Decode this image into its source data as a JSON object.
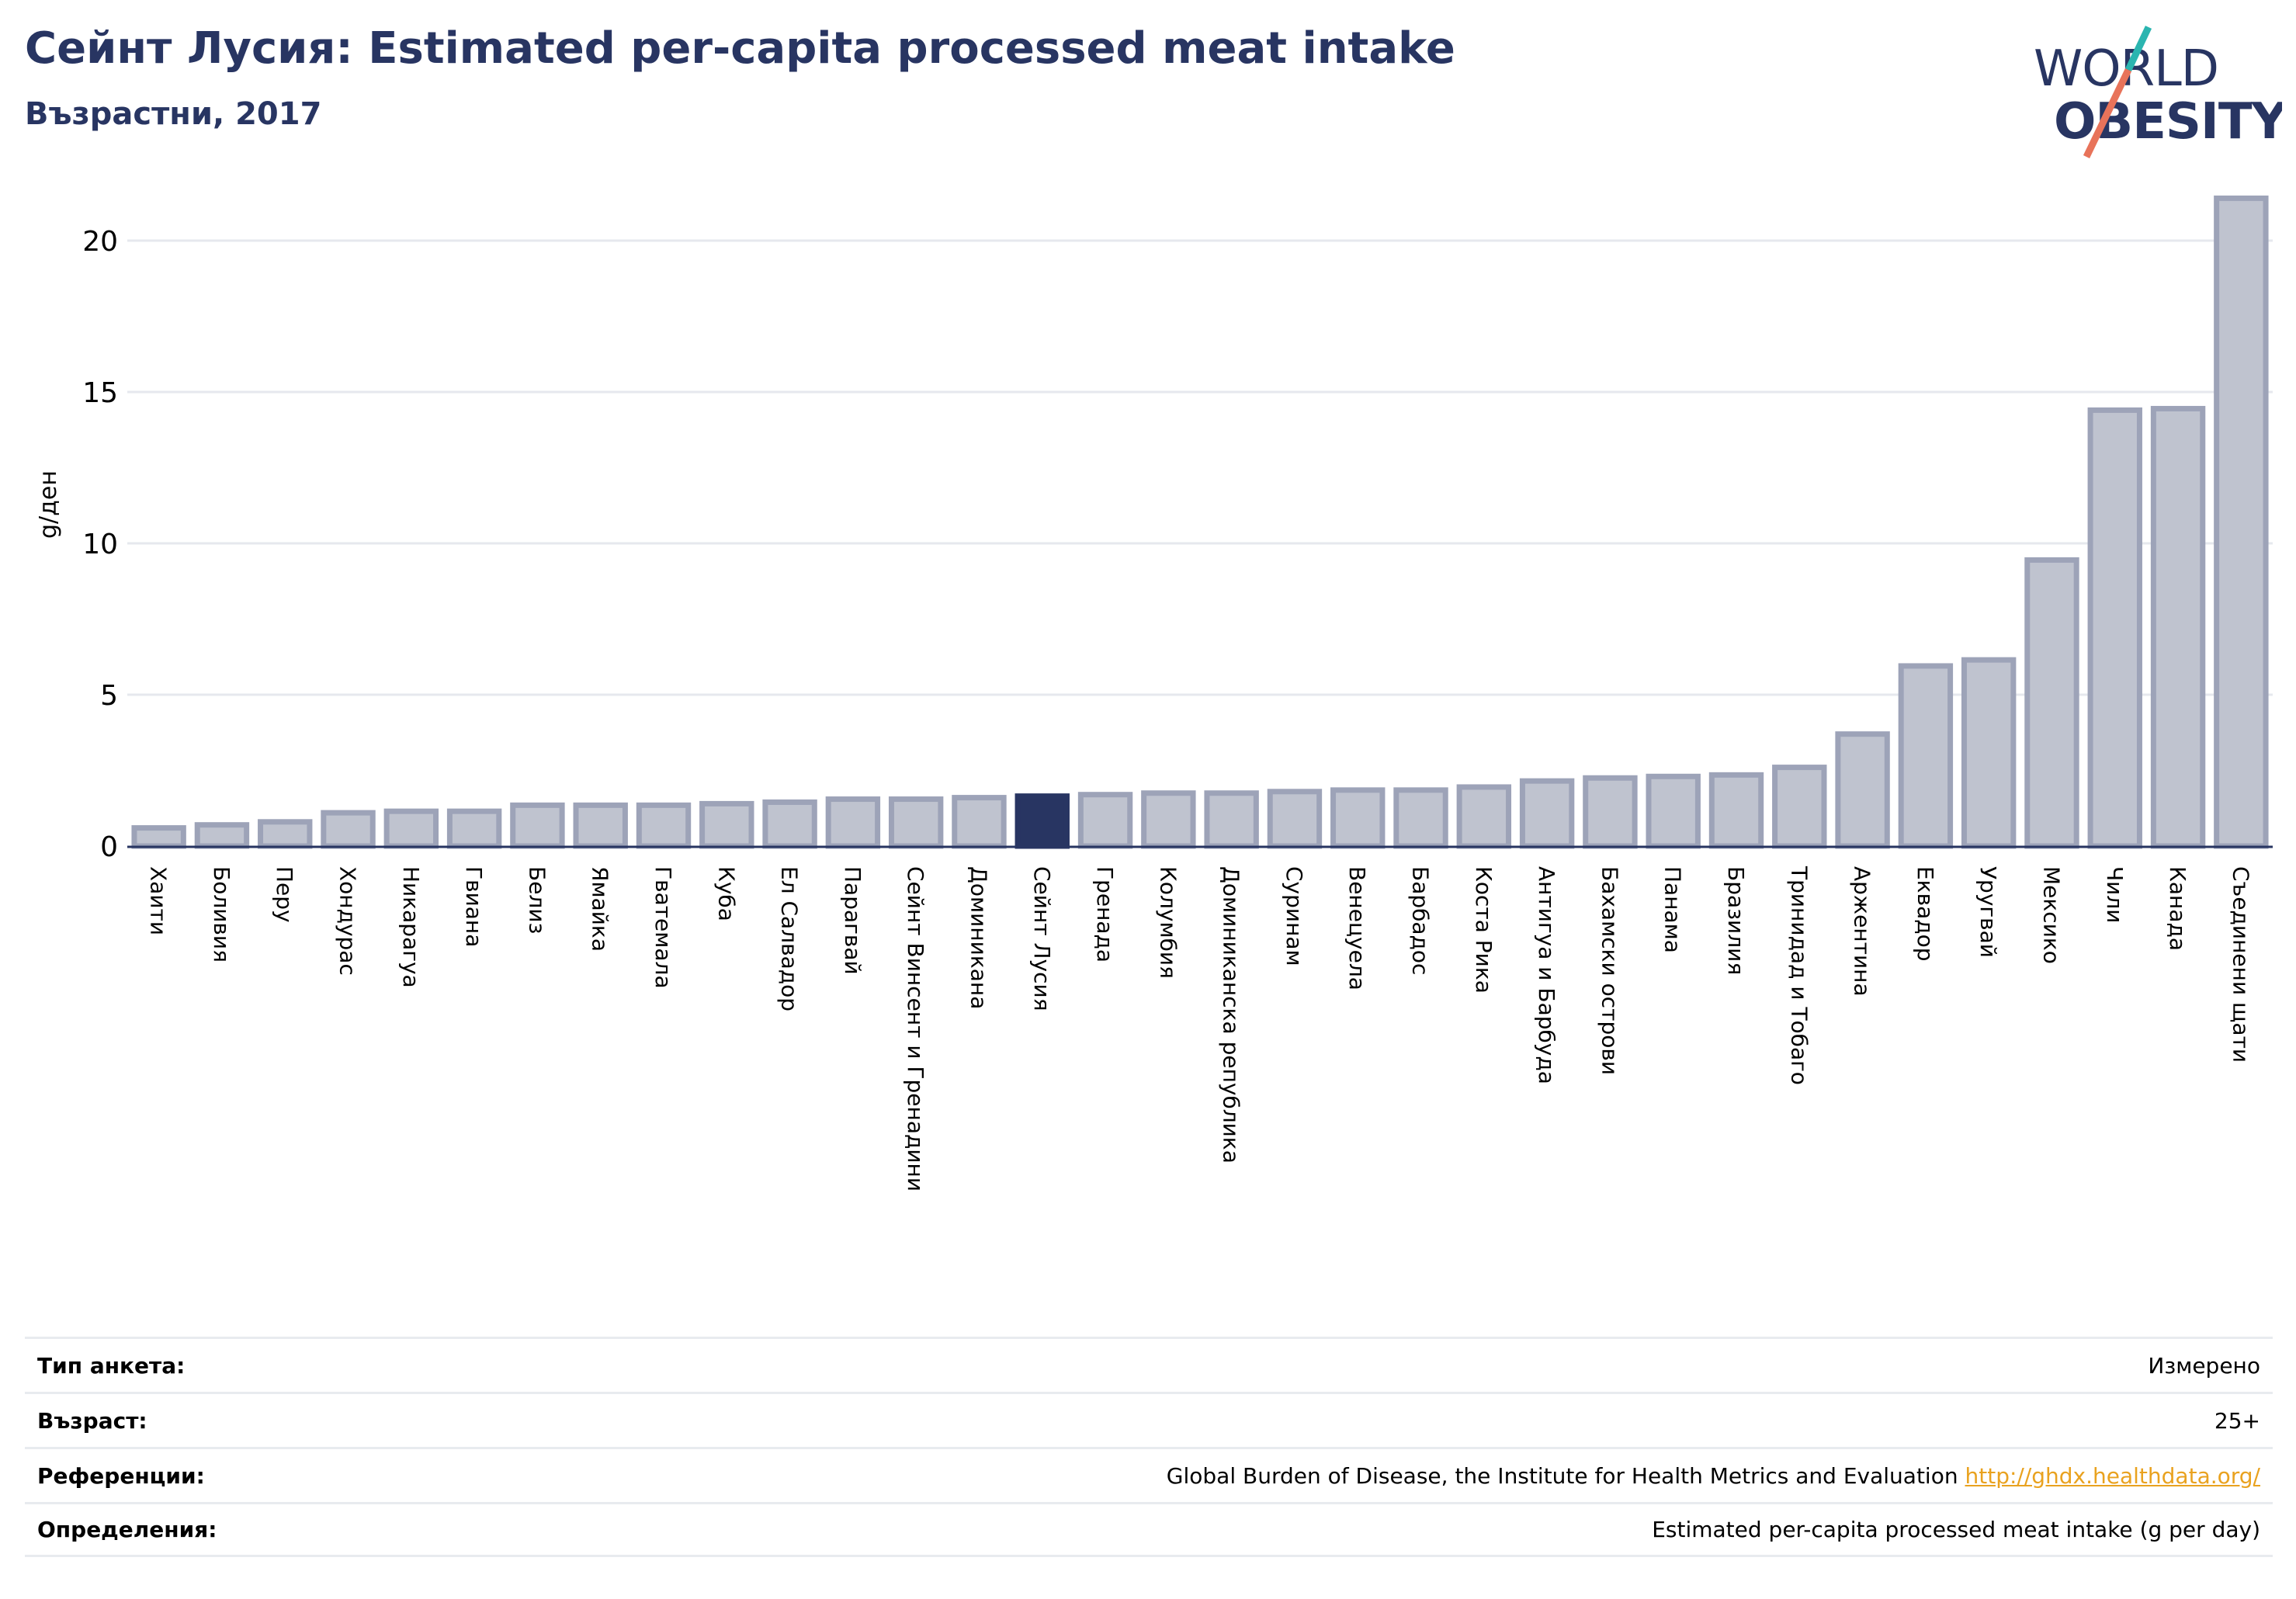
{
  "header": {
    "title": "Сейнт Лусия: Estimated per-capita processed meat intake",
    "subtitle": "Възрастни, 2017"
  },
  "logo": {
    "line1": "WORLD",
    "line2": "OBESITY",
    "slash_top_color": "#2bb5b0",
    "slash_bottom_color": "#e8735a",
    "text_color": "#283562"
  },
  "colors": {
    "bar_default": "#bfc3cf",
    "bar_default_stroke": "#9da3b8",
    "bar_highlight": "#283562",
    "grid": "#e6e8ee",
    "axis": "#283562"
  },
  "chart_data": {
    "type": "bar",
    "ylabel": "g/ден",
    "ylim": [
      0,
      22
    ],
    "yticks": [
      0,
      5,
      10,
      15,
      20
    ],
    "grid": true,
    "highlight": "Сейнт Лусия",
    "categories": [
      "Хаити",
      "Боливия",
      "Перу",
      "Хондурас",
      "Никарагуа",
      "Гвиана",
      "Белиз",
      "Ямайка",
      "Гватемала",
      "Куба",
      "Ел Салвадор",
      "Парагвай",
      "Сейнт Винсент и Гренадини",
      "Доминикана",
      "Сейнт Лусия",
      "Гренада",
      "Колумбия",
      "Доминиканска република",
      "Суринам",
      "Венецуела",
      "Барбадос",
      "Коста Рика",
      "Антигуа и Барбуда",
      "Бахамски острови",
      "Панама",
      "Бразилия",
      "Тринидад и Тобаго",
      "Аржентина",
      "Еквадор",
      "Уругвай",
      "Мексико",
      "Чили",
      "Канада",
      "Съединени щати"
    ],
    "values": [
      0.6,
      0.7,
      0.8,
      1.1,
      1.15,
      1.15,
      1.35,
      1.35,
      1.35,
      1.4,
      1.45,
      1.55,
      1.55,
      1.6,
      1.65,
      1.7,
      1.75,
      1.75,
      1.8,
      1.85,
      1.85,
      1.95,
      2.15,
      2.25,
      2.3,
      2.35,
      2.6,
      3.7,
      5.95,
      6.15,
      9.45,
      14.4,
      14.45,
      21.4
    ]
  },
  "info": [
    {
      "label": "Тип анкета:",
      "value": "Измерено"
    },
    {
      "label": "Възраст:",
      "value": "25+"
    },
    {
      "label": "Референции:",
      "value": "Global Burden of Disease, the Institute for Health Metrics and Evaluation ",
      "link": "http://ghdx.healthdata.org/"
    },
    {
      "label": "Определения:",
      "value": "Estimated per-capita processed meat intake (g per day)"
    }
  ]
}
